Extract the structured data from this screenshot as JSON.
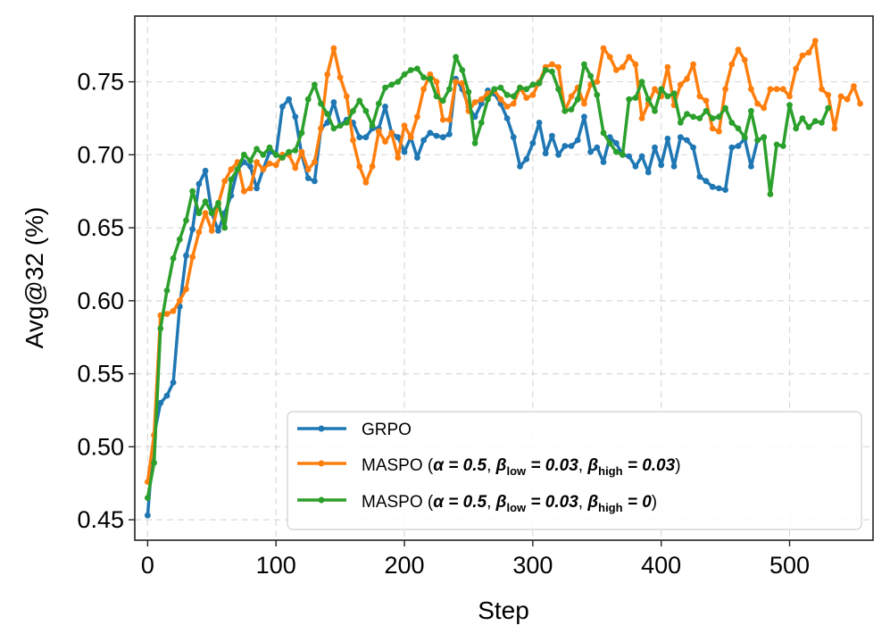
{
  "chart_data": {
    "type": "line",
    "title": "",
    "xlabel": "Step",
    "ylabel": "Avg@32 (%)",
    "xlim": [
      -10,
      565
    ],
    "ylim": [
      0.436,
      0.795
    ],
    "xticks": [
      0,
      100,
      200,
      300,
      400,
      500
    ],
    "yticks": [
      0.45,
      0.5,
      0.55,
      0.6,
      0.65,
      0.7,
      0.75
    ],
    "xtick_labels": [
      "0",
      "100",
      "200",
      "300",
      "400",
      "500"
    ],
    "ytick_labels": [
      "0.45",
      "0.50",
      "0.55",
      "0.60",
      "0.65",
      "0.70",
      "0.75"
    ],
    "grid": true,
    "legend_position": "lower-right",
    "series": [
      {
        "name": "GRPO",
        "color": "#1f77b4",
        "x": [
          0,
          5,
          10,
          15,
          20,
          25,
          30,
          35,
          40,
          45,
          50,
          55,
          60,
          65,
          70,
          75,
          80,
          85,
          90,
          95,
          100,
          105,
          110,
          115,
          120,
          125,
          130,
          135,
          140,
          145,
          150,
          155,
          160,
          165,
          170,
          175,
          180,
          185,
          190,
          195,
          200,
          205,
          210,
          215,
          220,
          225,
          230,
          235,
          240,
          245,
          250,
          255,
          260,
          265,
          270,
          275,
          280,
          285,
          290,
          295,
          300,
          305,
          310,
          315,
          320,
          325,
          330,
          335,
          340,
          345,
          350,
          355,
          360,
          365,
          370,
          375,
          380,
          385,
          390,
          395,
          400,
          405,
          410,
          415,
          420,
          425,
          430,
          435,
          440,
          445,
          450,
          455,
          460,
          465,
          470,
          475,
          480
        ],
        "values": [
          0.453,
          0.508,
          0.53,
          0.535,
          0.544,
          0.596,
          0.631,
          0.649,
          0.68,
          0.689,
          0.66,
          0.648,
          0.66,
          0.672,
          0.69,
          0.695,
          0.692,
          0.677,
          0.69,
          0.702,
          0.7,
          0.733,
          0.738,
          0.726,
          0.7,
          0.684,
          0.682,
          0.718,
          0.722,
          0.736,
          0.72,
          0.724,
          0.722,
          0.712,
          0.712,
          0.718,
          0.718,
          0.733,
          0.715,
          0.712,
          0.702,
          0.712,
          0.698,
          0.71,
          0.715,
          0.713,
          0.712,
          0.714,
          0.752,
          0.745,
          0.733,
          0.726,
          0.735,
          0.744,
          0.742,
          0.735,
          0.725,
          0.712,
          0.692,
          0.697,
          0.708,
          0.722,
          0.701,
          0.713,
          0.7,
          0.706,
          0.706,
          0.71,
          0.726,
          0.702,
          0.705,
          0.695,
          0.712,
          0.708,
          0.7,
          0.699,
          0.692,
          0.699,
          0.688,
          0.705,
          0.693,
          0.711,
          0.692,
          0.712,
          0.71,
          0.705,
          0.685,
          0.682,
          0.678,
          0.677,
          0.676,
          0.705,
          0.706,
          0.711,
          0.692,
          0.71,
          0.712
        ]
      },
      {
        "name": "MASPO (α = 0.5, β_low = 0.03, β_high = 0.03)",
        "legend_parts": {
          "prefix": "MASPO (",
          "alpha": "α = 0.5",
          "comma": ", ",
          "beta": "β",
          "low_sub": "low",
          "low_val": " = 0.03",
          "high_sub": "high",
          "high_val": " = 0.03",
          "suffix": ")"
        },
        "color": "#ff7f0e",
        "x": [
          0,
          5,
          10,
          15,
          20,
          25,
          30,
          35,
          40,
          45,
          50,
          55,
          60,
          65,
          70,
          75,
          80,
          85,
          90,
          95,
          100,
          105,
          110,
          115,
          120,
          125,
          130,
          135,
          140,
          145,
          150,
          155,
          160,
          165,
          170,
          175,
          180,
          185,
          190,
          195,
          200,
          205,
          210,
          215,
          220,
          225,
          230,
          235,
          240,
          245,
          250,
          255,
          260,
          265,
          270,
          275,
          280,
          285,
          290,
          295,
          300,
          305,
          310,
          315,
          320,
          325,
          330,
          335,
          340,
          345,
          350,
          355,
          360,
          365,
          370,
          375,
          380,
          385,
          390,
          395,
          400,
          405,
          410,
          415,
          420,
          425,
          430,
          435,
          440,
          445,
          450,
          455,
          460,
          465,
          470,
          475,
          480,
          485,
          490,
          495,
          500,
          505,
          510,
          515,
          520,
          525,
          530,
          535,
          540,
          545,
          550,
          555
        ],
        "values": [
          0.476,
          0.508,
          0.59,
          0.591,
          0.593,
          0.6,
          0.608,
          0.63,
          0.647,
          0.66,
          0.648,
          0.666,
          0.682,
          0.69,
          0.695,
          0.675,
          0.677,
          0.695,
          0.69,
          0.694,
          0.693,
          0.7,
          0.7,
          0.691,
          0.702,
          0.69,
          0.695,
          0.718,
          0.755,
          0.773,
          0.753,
          0.74,
          0.71,
          0.692,
          0.681,
          0.692,
          0.716,
          0.709,
          0.715,
          0.698,
          0.72,
          0.712,
          0.726,
          0.745,
          0.755,
          0.75,
          0.724,
          0.724,
          0.75,
          0.749,
          0.73,
          0.736,
          0.738,
          0.742,
          0.744,
          0.738,
          0.733,
          0.735,
          0.746,
          0.739,
          0.741,
          0.75,
          0.76,
          0.762,
          0.76,
          0.73,
          0.74,
          0.746,
          0.735,
          0.748,
          0.75,
          0.773,
          0.767,
          0.758,
          0.76,
          0.767,
          0.762,
          0.725,
          0.735,
          0.745,
          0.74,
          0.76,
          0.734,
          0.748,
          0.752,
          0.762,
          0.74,
          0.737,
          0.718,
          0.716,
          0.745,
          0.762,
          0.772,
          0.765,
          0.745,
          0.735,
          0.732,
          0.745,
          0.745,
          0.745,
          0.74,
          0.759,
          0.768,
          0.77,
          0.778,
          0.745,
          0.741,
          0.718,
          0.74,
          0.738,
          0.747,
          0.735
        ]
      },
      {
        "name": "MASPO (α = 0.5, β_low = 0.03, β_high = 0)",
        "legend_parts": {
          "prefix": "MASPO (",
          "alpha": "α = 0.5",
          "comma": ", ",
          "beta": "β",
          "low_sub": "low",
          "low_val": " = 0.03",
          "high_sub": "high",
          "high_val": " = 0",
          "suffix": ")"
        },
        "color": "#2ca02c",
        "x": [
          0,
          5,
          10,
          15,
          20,
          25,
          30,
          35,
          40,
          45,
          50,
          55,
          60,
          65,
          70,
          75,
          80,
          85,
          90,
          95,
          100,
          105,
          110,
          115,
          120,
          125,
          130,
          135,
          140,
          145,
          150,
          155,
          160,
          165,
          170,
          175,
          180,
          185,
          190,
          195,
          200,
          205,
          210,
          215,
          220,
          225,
          230,
          235,
          240,
          245,
          250,
          255,
          260,
          265,
          270,
          275,
          280,
          285,
          290,
          295,
          300,
          305,
          310,
          315,
          320,
          325,
          330,
          335,
          340,
          345,
          350,
          355,
          360,
          365,
          370,
          375,
          380,
          385,
          390,
          395,
          400,
          405,
          410,
          415,
          420,
          425,
          430,
          435,
          440,
          445,
          450,
          455,
          460,
          465,
          470,
          475,
          480,
          485,
          490,
          495,
          500,
          505,
          510,
          515,
          520,
          525,
          530
        ],
        "values": [
          0.465,
          0.489,
          0.581,
          0.607,
          0.629,
          0.642,
          0.655,
          0.675,
          0.66,
          0.668,
          0.66,
          0.667,
          0.65,
          0.683,
          0.69,
          0.7,
          0.696,
          0.704,
          0.7,
          0.705,
          0.7,
          0.698,
          0.702,
          0.703,
          0.715,
          0.738,
          0.748,
          0.735,
          0.728,
          0.718,
          0.72,
          0.722,
          0.73,
          0.737,
          0.73,
          0.72,
          0.735,
          0.746,
          0.748,
          0.75,
          0.755,
          0.758,
          0.759,
          0.753,
          0.752,
          0.74,
          0.737,
          0.745,
          0.767,
          0.758,
          0.743,
          0.708,
          0.722,
          0.738,
          0.745,
          0.746,
          0.741,
          0.74,
          0.746,
          0.745,
          0.748,
          0.749,
          0.758,
          0.757,
          0.745,
          0.73,
          0.731,
          0.738,
          0.762,
          0.754,
          0.741,
          0.715,
          0.708,
          0.702,
          0.7,
          0.738,
          0.739,
          0.75,
          0.738,
          0.73,
          0.745,
          0.74,
          0.742,
          0.722,
          0.728,
          0.726,
          0.725,
          0.73,
          0.725,
          0.726,
          0.732,
          0.722,
          0.718,
          0.712,
          0.73,
          0.71,
          0.712,
          0.673,
          0.707,
          0.706,
          0.734,
          0.718,
          0.725,
          0.719,
          0.723,
          0.722,
          0.732
        ]
      }
    ]
  }
}
